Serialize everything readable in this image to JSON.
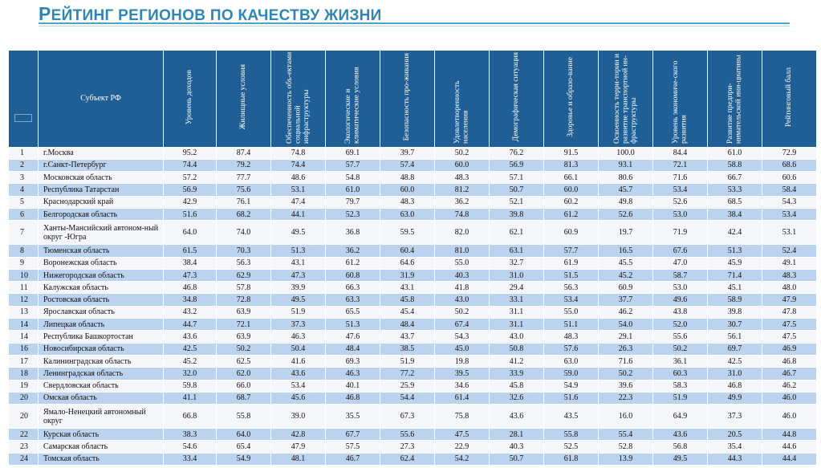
{
  "page": {
    "title_first_letter": "Р",
    "title_rest": "ЕЙТИНГ РЕГИОНОВ ПО КАЧЕСТВУ ЖИЗНИ"
  },
  "table": {
    "subject_header": "Субъект РФ",
    "columns": [
      "Уровень доходов",
      "Жилищные условия",
      "Обеспеченность объ-ектами социальной инфраструктуры",
      "Экологические и климатические условия",
      "Безопасность про-живания",
      "Удовлетворенность населения",
      "Демографическая ситуация",
      "Здоровье и образо-вание",
      "Освоенность терри-тории и развитие транспортной ин-фраструктуры",
      "Уровень экономиче-ского развития",
      "Развитие предпри-нимательской ини-циативы",
      "Рейтинговый балл"
    ],
    "rows": [
      {
        "rank": "1",
        "name": "г.Москва",
        "values": [
          "95.2",
          "87.4",
          "74.8",
          "69.1",
          "39.7",
          "50.2",
          "76.2",
          "91.5",
          "100.0",
          "84.4",
          "61.0",
          "72.9"
        ]
      },
      {
        "rank": "2",
        "name": "г.Санкт-Петербург",
        "values": [
          "74.4",
          "79.2",
          "74.4",
          "57.7",
          "57.4",
          "60.0",
          "56.9",
          "81.3",
          "93.1",
          "72.1",
          "58.8",
          "68.6"
        ]
      },
      {
        "rank": "3",
        "name": "Московская область",
        "values": [
          "57.2",
          "77.7",
          "48.6",
          "54.8",
          "48.8",
          "48.3",
          "57.1",
          "66.1",
          "80.6",
          "71.6",
          "66.7",
          "60.6"
        ]
      },
      {
        "rank": "4",
        "name": "Республика Татарстан",
        "values": [
          "56.9",
          "75.6",
          "53.1",
          "61.0",
          "60.0",
          "81.2",
          "50.7",
          "60.0",
          "45.7",
          "53.4",
          "53.3",
          "58.4"
        ]
      },
      {
        "rank": "5",
        "name": "Краснодарский край",
        "values": [
          "42.9",
          "76.1",
          "47.4",
          "79.7",
          "48.3",
          "36.2",
          "52.1",
          "60.2",
          "49.8",
          "52.6",
          "68.5",
          "54.3"
        ]
      },
      {
        "rank": "6",
        "name": "Белгородская область",
        "values": [
          "51.6",
          "68.2",
          "44.1",
          "52.3",
          "63.0",
          "74.8",
          "39.8",
          "61.2",
          "52.6",
          "53.0",
          "38.4",
          "53.4"
        ]
      },
      {
        "rank": "7",
        "name": "Ханты-Мансийский автоном-ный округ -Югра",
        "values": [
          "64.0",
          "74.0",
          "49.5",
          "36.8",
          "59.5",
          "82.0",
          "62.1",
          "60.9",
          "19.7",
          "71.9",
          "42.4",
          "53.1"
        ]
      },
      {
        "rank": "8",
        "name": "Тюменская область",
        "values": [
          "61.5",
          "70.3",
          "51.3",
          "36.2",
          "60.4",
          "81.0",
          "63.1",
          "57.7",
          "16.5",
          "67.6",
          "51.3",
          "52.4"
        ]
      },
      {
        "rank": "9",
        "name": "Воронежская область",
        "values": [
          "38.4",
          "56.3",
          "43.1",
          "61.2",
          "64.6",
          "55.0",
          "32.7",
          "61.9",
          "45.5",
          "47.0",
          "45.9",
          "49.1"
        ]
      },
      {
        "rank": "10",
        "name": "Нижегородская область",
        "values": [
          "47.3",
          "62.9",
          "47.3",
          "60.8",
          "31.9",
          "40.3",
          "31.0",
          "51.5",
          "45.2",
          "58.7",
          "71.4",
          "48.3"
        ]
      },
      {
        "rank": "11",
        "name": "Калужская область",
        "values": [
          "46.8",
          "57.8",
          "39.9",
          "66.3",
          "43.1",
          "41.8",
          "29.4",
          "56.3",
          "60.9",
          "53.0",
          "45.1",
          "48.0"
        ]
      },
      {
        "rank": "12",
        "name": "Ростовская область",
        "values": [
          "34.8",
          "72.8",
          "49.5",
          "63.3",
          "45.8",
          "43.0",
          "33.1",
          "53.4",
          "37.7",
          "49.6",
          "58.9",
          "47.9"
        ]
      },
      {
        "rank": "13",
        "name": "Ярославская область",
        "values": [
          "43.2",
          "63.9",
          "51.9",
          "65.5",
          "45.4",
          "50.2",
          "31.1",
          "55.0",
          "46.2",
          "43.8",
          "39.8",
          "47.8"
        ]
      },
      {
        "rank": "14",
        "name": "Липецкая область",
        "values": [
          "44.7",
          "72.1",
          "37.3",
          "51.3",
          "48.4",
          "67.4",
          "31.1",
          "51.1",
          "54.0",
          "52.0",
          "30.7",
          "47.5"
        ]
      },
      {
        "rank": "14",
        "name": "Республика Башкортостан",
        "values": [
          "43.6",
          "63.9",
          "46.3",
          "47.6",
          "43.7",
          "54.3",
          "43.0",
          "48.3",
          "29.1",
          "55.6",
          "56.1",
          "47.5"
        ]
      },
      {
        "rank": "16",
        "name": "Новосибирская область",
        "values": [
          "42.5",
          "50.2",
          "50.4",
          "48.4",
          "38.5",
          "45.0",
          "50.8",
          "57.6",
          "26.3",
          "50.2",
          "69.7",
          "46.9"
        ]
      },
      {
        "rank": "17",
        "name": "Калининградская область",
        "values": [
          "45.2",
          "62.5",
          "41.6",
          "69.3",
          "51.9",
          "19.8",
          "41.2",
          "63.0",
          "71.6",
          "36.1",
          "42.5",
          "46.8"
        ]
      },
      {
        "rank": "18",
        "name": "Ленинградская область",
        "values": [
          "32.0",
          "62.0",
          "43.6",
          "46.3",
          "77.2",
          "39.5",
          "33.9",
          "59.0",
          "50.2",
          "60.3",
          "31.0",
          "46.7"
        ]
      },
      {
        "rank": "19",
        "name": "Свердловская область",
        "values": [
          "59.8",
          "66.0",
          "53.4",
          "40.1",
          "25.9",
          "34.6",
          "45.8",
          "54.9",
          "39.6",
          "58.3",
          "46.8",
          "46.2"
        ]
      },
      {
        "rank": "20",
        "name": "Омская область",
        "values": [
          "41.1",
          "68.7",
          "45.6",
          "46.8",
          "54.4",
          "61.4",
          "32.6",
          "51.6",
          "22.3",
          "51.9",
          "49.9",
          "46.0"
        ]
      },
      {
        "rank": "20",
        "name": "Ямало-Ненецкий автономный округ",
        "values": [
          "66.8",
          "55.8",
          "39.0",
          "35.5",
          "67.3",
          "75.8",
          "43.6",
          "43.5",
          "16.0",
          "64.9",
          "37.3",
          "46.0"
        ]
      },
      {
        "rank": "22",
        "name": "Курская область",
        "values": [
          "38.3",
          "64.0",
          "42.8",
          "67.7",
          "55.6",
          "47.5",
          "28.1",
          "55.8",
          "55.4",
          "43.6",
          "20.5",
          "44.8"
        ]
      },
      {
        "rank": "23",
        "name": "Самарская область",
        "values": [
          "54.6",
          "65.4",
          "47.9",
          "57.5",
          "27.3",
          "22.9",
          "40.3",
          "52.5",
          "52.8",
          "56.8",
          "35.4",
          "44.6"
        ]
      },
      {
        "rank": "24",
        "name": "Томская область",
        "values": [
          "33.4",
          "54.9",
          "48.1",
          "46.7",
          "62.4",
          "54.2",
          "50.7",
          "61.8",
          "13.9",
          "49.5",
          "44.3",
          "44.4"
        ]
      }
    ]
  }
}
